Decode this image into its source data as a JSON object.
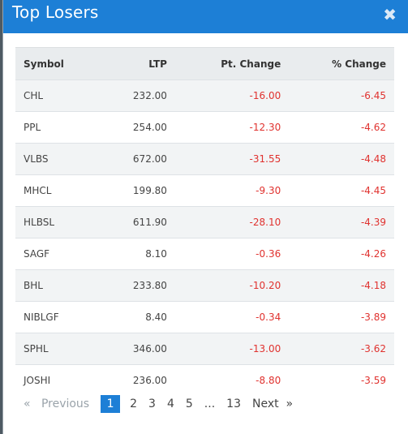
{
  "modal": {
    "title": "Top Losers",
    "close_icon": "✖"
  },
  "table": {
    "headers": {
      "symbol": "Symbol",
      "ltp": "LTP",
      "pt_change": "Pt. Change",
      "pct_change": "% Change"
    },
    "rows": [
      {
        "symbol": "CHL",
        "ltp": "232.00",
        "pt": "-16.00",
        "pct": "-6.45"
      },
      {
        "symbol": "PPL",
        "ltp": "254.00",
        "pt": "-12.30",
        "pct": "-4.62"
      },
      {
        "symbol": "VLBS",
        "ltp": "672.00",
        "pt": "-31.55",
        "pct": "-4.48"
      },
      {
        "symbol": "MHCL",
        "ltp": "199.80",
        "pt": "-9.30",
        "pct": "-4.45"
      },
      {
        "symbol": "HLBSL",
        "ltp": "611.90",
        "pt": "-28.10",
        "pct": "-4.39"
      },
      {
        "symbol": "SAGF",
        "ltp": "8.10",
        "pt": "-0.36",
        "pct": "-4.26"
      },
      {
        "symbol": "BHL",
        "ltp": "233.80",
        "pt": "-10.20",
        "pct": "-4.18"
      },
      {
        "symbol": "NIBLGF",
        "ltp": "8.40",
        "pt": "-0.34",
        "pct": "-3.89"
      },
      {
        "symbol": "SPHL",
        "ltp": "346.00",
        "pt": "-13.00",
        "pct": "-3.62"
      },
      {
        "symbol": "JOSHI",
        "ltp": "236.00",
        "pt": "-8.80",
        "pct": "-3.59"
      }
    ]
  },
  "pagination": {
    "prev_arrow": "«",
    "prev_label": "Previous",
    "pages": [
      "1",
      "2",
      "3",
      "4",
      "5"
    ],
    "ellipsis": "...",
    "last_page": "13",
    "next_label": "Next",
    "next_arrow": "»",
    "current_page": "1"
  },
  "colors": {
    "header": "#1d7fd6",
    "negative": "#e0322f",
    "active_page": "#1d7fd6"
  }
}
